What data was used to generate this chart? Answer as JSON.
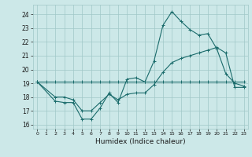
{
  "xlabel": "Humidex (Indice chaleur)",
  "bg_color": "#cce8e8",
  "grid_color": "#a0c8c8",
  "line_color": "#1a6b6b",
  "xlim": [
    -0.5,
    23.5
  ],
  "ylim": [
    15.7,
    24.7
  ],
  "yticks": [
    16,
    17,
    18,
    19,
    20,
    21,
    22,
    23,
    24
  ],
  "xtick_labels": [
    "0",
    "1",
    "2",
    "3",
    "4",
    "5",
    "6",
    "7",
    "8",
    "9",
    "10",
    "11",
    "12",
    "13",
    "14",
    "15",
    "16",
    "17",
    "18",
    "19",
    "20",
    "21",
    "22",
    "23"
  ],
  "line1_x": [
    0,
    1,
    2,
    3,
    4,
    5,
    6,
    7,
    8,
    9,
    10,
    11,
    12,
    13,
    14,
    15,
    16,
    17,
    18,
    19,
    20,
    21,
    22,
    23
  ],
  "line1_y": [
    19.1,
    19.1,
    19.1,
    19.1,
    19.1,
    19.1,
    19.1,
    19.1,
    19.1,
    19.1,
    19.1,
    19.1,
    19.1,
    19.1,
    19.1,
    19.1,
    19.1,
    19.1,
    19.1,
    19.1,
    19.1,
    19.1,
    19.1,
    19.1
  ],
  "line2_x": [
    0,
    2,
    3,
    4,
    5,
    6,
    7,
    8,
    9,
    10,
    11,
    12,
    13,
    14,
    15,
    16,
    17,
    18,
    19,
    20,
    21,
    22,
    23
  ],
  "line2_y": [
    19.1,
    17.7,
    17.6,
    17.6,
    16.4,
    16.4,
    17.2,
    18.3,
    17.6,
    19.3,
    19.4,
    19.1,
    20.6,
    23.2,
    24.2,
    23.5,
    22.9,
    22.5,
    22.6,
    21.5,
    19.7,
    19.0,
    18.8
  ],
  "line3_x": [
    0,
    2,
    3,
    4,
    5,
    6,
    7,
    8,
    9,
    10,
    11,
    12,
    13,
    14,
    15,
    16,
    17,
    18,
    19,
    20,
    21,
    22,
    23
  ],
  "line3_y": [
    19.1,
    18.0,
    18.0,
    17.8,
    17.0,
    17.0,
    17.6,
    18.2,
    17.8,
    18.2,
    18.3,
    18.3,
    18.9,
    19.8,
    20.5,
    20.8,
    21.0,
    21.2,
    21.4,
    21.6,
    21.2,
    18.7,
    18.7
  ]
}
